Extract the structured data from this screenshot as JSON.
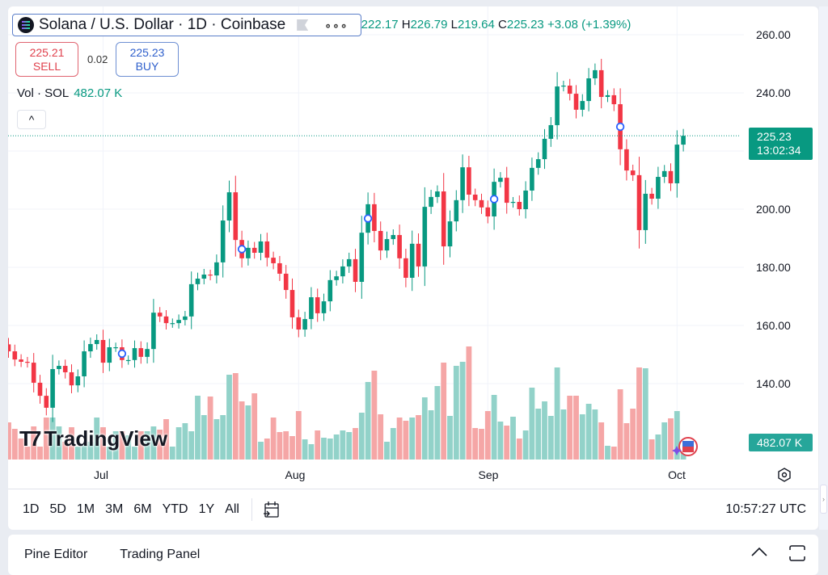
{
  "symbol": {
    "title": "Solana / U.S. Dollar · 1D · Coinbase",
    "logo": "solana-logo-icon"
  },
  "ohlc": {
    "o_label": "O",
    "o": "222.17",
    "h_label": "H",
    "h": "226.79",
    "l_label": "L",
    "l": "219.64",
    "c_label": "C",
    "c": "225.23",
    "change": "+3.08 (+1.39%)"
  },
  "trade": {
    "sell_price": "225.21",
    "sell_label": "SELL",
    "spread": "0.02",
    "buy_price": "225.23",
    "buy_label": "BUY"
  },
  "volume_legend": {
    "label": "Vol · SOL",
    "value": "482.07 K"
  },
  "collapse_label": "^",
  "price_axis": {
    "ticks": [
      "260.00",
      "240.00",
      "200.00",
      "180.00",
      "160.00",
      "140.00"
    ],
    "last_price": "225.23",
    "countdown": "13:02:34",
    "volume_label": "482.07 K"
  },
  "time_axis": {
    "labels": [
      "Jul",
      "Aug",
      "Sep",
      "Oct"
    ]
  },
  "brand": {
    "name": "TradingView"
  },
  "toolbar": {
    "ranges": [
      "1D",
      "5D",
      "1M",
      "3M",
      "6M",
      "YTD",
      "1Y",
      "All"
    ],
    "clock": "10:57:27 UTC"
  },
  "bottom_panel": {
    "tabs": [
      "Pine Editor",
      "Trading Panel"
    ]
  },
  "colors": {
    "up": "#089981",
    "down": "#f23645",
    "vol_up": "#92d2c9",
    "vol_down": "#f5a6a6",
    "grid": "#f0f3fa",
    "marker": "#2962ff"
  },
  "chart_data": {
    "type": "candlestick",
    "ylim": [
      130,
      262
    ],
    "y_ticks": [
      260,
      240,
      220,
      200,
      180,
      160,
      140
    ],
    "first_open": 153.5,
    "closes": [
      151.1,
      148.3,
      147.5,
      147.2,
      140.3,
      135.8,
      131.7,
      145.0,
      146.1,
      143.9,
      139.4,
      142.5,
      151.1,
      153.6,
      155.0,
      147.2,
      152.5,
      152.5,
      148.1,
      148.1,
      152.2,
      149.2,
      151.9,
      164.4,
      163.1,
      160.8,
      160.8,
      161.9,
      163.1,
      174.2,
      176.1,
      177.5,
      177.2,
      181.7,
      196.1,
      205.8,
      189.4,
      183.1,
      186.7,
      185.0,
      188.9,
      183.3,
      181.4,
      177.8,
      172.2,
      162.8,
      158.6,
      162.2,
      169.7,
      164.2,
      168.3,
      175.6,
      176.9,
      180.3,
      182.8,
      175.0,
      191.9,
      201.7,
      192.5,
      185.8,
      189.7,
      191.1,
      183.1,
      176.4,
      188.1,
      180.3,
      200.8,
      204.2,
      206.1,
      187.2,
      195.8,
      203.1,
      214.4,
      205.0,
      203.1,
      200.6,
      197.5,
      209.4,
      210.8,
      202.2,
      202.5,
      200.0,
      206.4,
      214.2,
      217.2,
      224.2,
      228.9,
      242.2,
      242.5,
      239.7,
      234.2,
      237.2,
      245.0,
      247.8,
      238.6,
      239.2,
      236.1,
      220.6,
      213.3,
      211.7,
      192.8,
      205.3,
      203.6,
      211.1,
      213.1,
      208.9,
      222.2,
      225.23
    ],
    "volume_k": [
      1058,
      874,
      598,
      368,
      943,
      368,
      1196,
      1196,
      943,
      506,
      920,
      368,
      414,
      506,
      1196,
      920,
      368,
      805,
      805,
      690,
      368,
      805,
      805,
      943,
      851,
      1150,
      368,
      920,
      1035,
      805,
      1817,
      1265,
      1794,
      1150,
      1265,
      2415,
      2461,
      1656,
      1541,
      1886,
      506,
      598,
      1196,
      782,
      805,
      667,
      1380,
      575,
      437,
      828,
      621,
      598,
      713,
      828,
      782,
      897,
      1334,
      2208,
      2530,
      1288,
      506,
      897,
      1196,
      1104,
      1196,
      1265,
      1771,
      1403,
      2093,
      2760,
      1242,
      2668,
      2783,
      3220,
      897,
      874,
      1380,
      1840,
      1081,
      966,
      1219,
      598,
      828,
      2047,
      1449,
      1656,
      1242,
      2622,
      1426,
      1817,
      1817,
      1288,
      1587,
      1426,
      1058,
      391,
      368,
      2001,
      1035,
      1449,
      2622,
      2599,
      575,
      713,
      1058,
      1173,
      1380,
      482.07
    ],
    "event_marker_indices": [
      18,
      37,
      57,
      77,
      97
    ],
    "month_start_indices": {
      "Jul": 15,
      "Aug": 46,
      "Sep": 76,
      "Oct": 106
    }
  }
}
